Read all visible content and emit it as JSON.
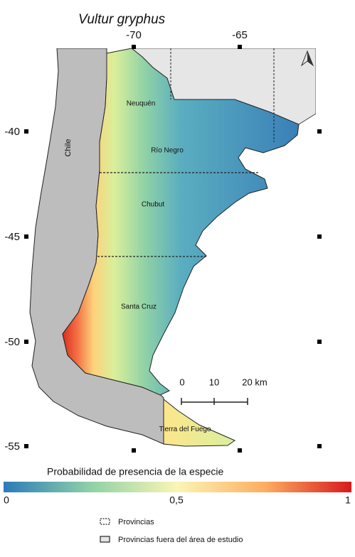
{
  "title": "Vultur gryphus",
  "longitude_ticks": [
    "-70",
    "-65"
  ],
  "latitude_ticks": [
    "-40",
    "-45",
    "-50",
    "-55"
  ],
  "regions": {
    "chile": "Chile",
    "provinces": [
      "Neuquén",
      "Río Negro",
      "Chubut",
      "Santa Cruz",
      "Tierra del Fuego"
    ]
  },
  "scale_bar": {
    "labels": [
      "0",
      "10",
      "20 km"
    ]
  },
  "colorbar": {
    "title": "Probabilidad de presencia de la especie",
    "labels": [
      "0",
      "0,5",
      "1"
    ]
  },
  "legend": {
    "items": [
      "Provincias",
      "Provincias fuera del área de estudio"
    ]
  }
}
